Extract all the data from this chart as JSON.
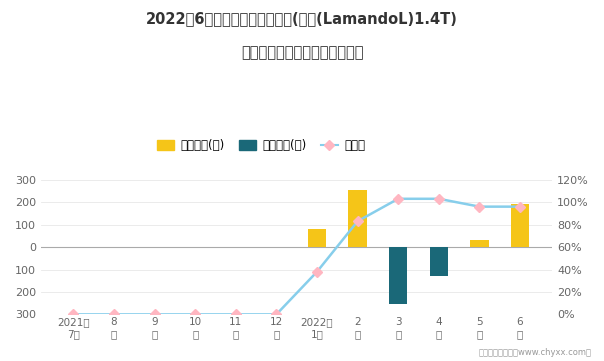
{
  "title_line1": "2022年6月凌渡旗下最畅销轿车(凌渡(LamandoL)1.4T)",
  "title_line2": "近一年库存情况及产销率统计图",
  "x_labels": [
    "2021年\n7月",
    "8\n月",
    "9\n月",
    "10\n月",
    "11\n月",
    "12\n月",
    "2022年\n1月",
    "2\n月",
    "3\n月",
    "4\n月",
    "5\n月",
    "6\n月"
  ],
  "jiyu_values": [
    0,
    0,
    0,
    0,
    0,
    0,
    80,
    255,
    0,
    0,
    30,
    190
  ],
  "qingcang_values": [
    0,
    0,
    0,
    0,
    0,
    0,
    0,
    0,
    -255,
    -130,
    0,
    0
  ],
  "chanxiao_values": [
    0.0,
    0.0,
    0.0,
    0.0,
    0.0,
    0.0,
    0.38,
    0.83,
    1.03,
    1.03,
    0.96,
    0.96
  ],
  "jiyu_color": "#F5C518",
  "qingcang_color": "#1A6878",
  "chanxiao_line_color": "#87CEEB",
  "chanxiao_marker_facecolor": "#FFB6C1",
  "chanxiao_marker_edgecolor": "#FFB6C1",
  "ylim_min": -300,
  "ylim_max": 300,
  "y2lim_min": 0.0,
  "y2lim_max": 1.2,
  "legend_jiyu": "积压库存(辆)",
  "legend_qingcang": "清仓库存(辆)",
  "legend_chanxiao": "产销率",
  "footer": "制图：智研咋询（www.chyxx.com）",
  "bg_color": "#FFFFFF",
  "title_color": "#333333",
  "axis_color": "#666666",
  "grid_color": "#E8E8E8",
  "zero_line_color": "#AAAAAA"
}
